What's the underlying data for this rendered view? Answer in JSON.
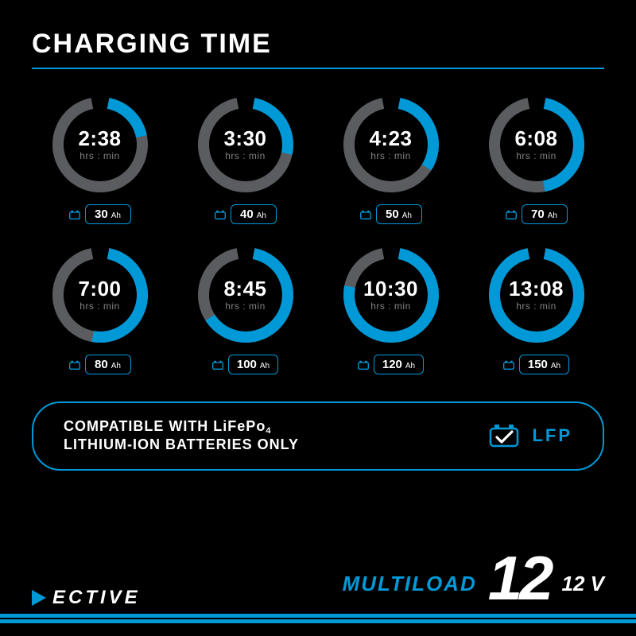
{
  "colors": {
    "accent": "#0099d8",
    "bg": "#000000",
    "ring_bg": "#5a5c60",
    "text": "#ffffff",
    "muted": "#808285"
  },
  "title": "CHARGING TIME",
  "unit_label": "hrs : min",
  "capacity_unit": "Ah",
  "gauge": {
    "outer_radius": 60,
    "stroke_width": 14,
    "gap_deg": 22,
    "start_angle_deg": -90
  },
  "gauges": [
    {
      "time": "2:38",
      "capacity": "30",
      "progress_pct": 20
    },
    {
      "time": "3:30",
      "capacity": "40",
      "progress_pct": 27
    },
    {
      "time": "4:23",
      "capacity": "50",
      "progress_pct": 33
    },
    {
      "time": "6:08",
      "capacity": "70",
      "progress_pct": 47
    },
    {
      "time": "7:00",
      "capacity": "80",
      "progress_pct": 53
    },
    {
      "time": "8:45",
      "capacity": "100",
      "progress_pct": 67
    },
    {
      "time": "10:30",
      "capacity": "120",
      "progress_pct": 80
    },
    {
      "time": "13:08",
      "capacity": "150",
      "progress_pct": 100
    }
  ],
  "compat": {
    "line1": "COMPATIBLE WITH LiFePo",
    "sub": "4",
    "line2": "LITHIUM-ION BATTERIES ONLY",
    "badge": "LFP"
  },
  "footer": {
    "brand": "ECTIVE",
    "product_name": "MULTILOAD",
    "product_number": "12",
    "voltage": "12 V"
  }
}
